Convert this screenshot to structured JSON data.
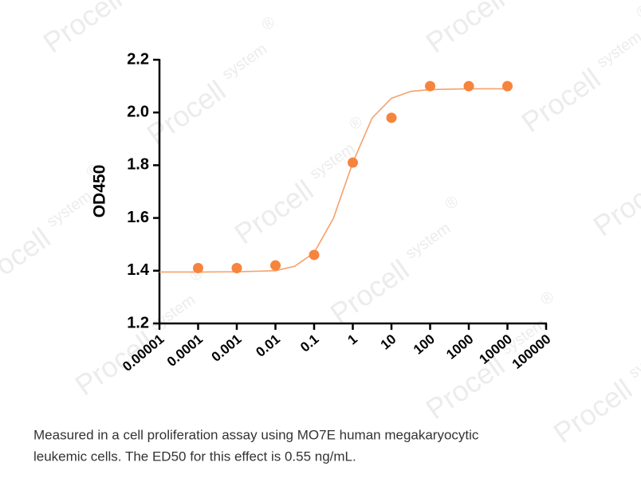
{
  "chart_data": {
    "type": "scatter",
    "ylabel": "OD450",
    "x": [
      0.0001,
      0.001,
      0.01,
      0.1,
      1,
      10,
      100,
      1000,
      10000
    ],
    "values": [
      1.41,
      1.41,
      1.42,
      1.46,
      1.81,
      1.98,
      2.1,
      2.1,
      2.1
    ],
    "color": "#f7843d",
    "fit": {
      "x": [
        1e-05,
        0.0001,
        0.001,
        0.01,
        0.0316,
        0.1,
        0.316,
        1,
        3.16,
        10,
        31.6,
        100,
        1000,
        10000
      ],
      "values": [
        1.395,
        1.395,
        1.396,
        1.4,
        1.417,
        1.468,
        1.599,
        1.81,
        1.979,
        2.054,
        2.08,
        2.087,
        2.09,
        2.09
      ],
      "color": "#f7a06a"
    },
    "xscale": "log",
    "xlim": [
      1e-05,
      100000
    ],
    "xticks": [
      1e-05,
      0.0001,
      0.001,
      0.01,
      0.1,
      1,
      10,
      100,
      1000,
      10000,
      100000
    ],
    "ylim": [
      1.2,
      2.2
    ],
    "yticks": [
      1.2,
      1.4,
      1.6,
      1.8,
      {
        "value": 2,
        "label": "2.0"
      },
      2.2
    ],
    "grid": false
  },
  "caption": [
    "Measured in a cell proliferation assay using MO7E human megakaryocytic",
    "leukemic cells. The ED50 for this effect is 0.55 ng/mL."
  ],
  "watermark": {
    "brand": "Procell",
    "sub": "system",
    "mark": "®"
  }
}
